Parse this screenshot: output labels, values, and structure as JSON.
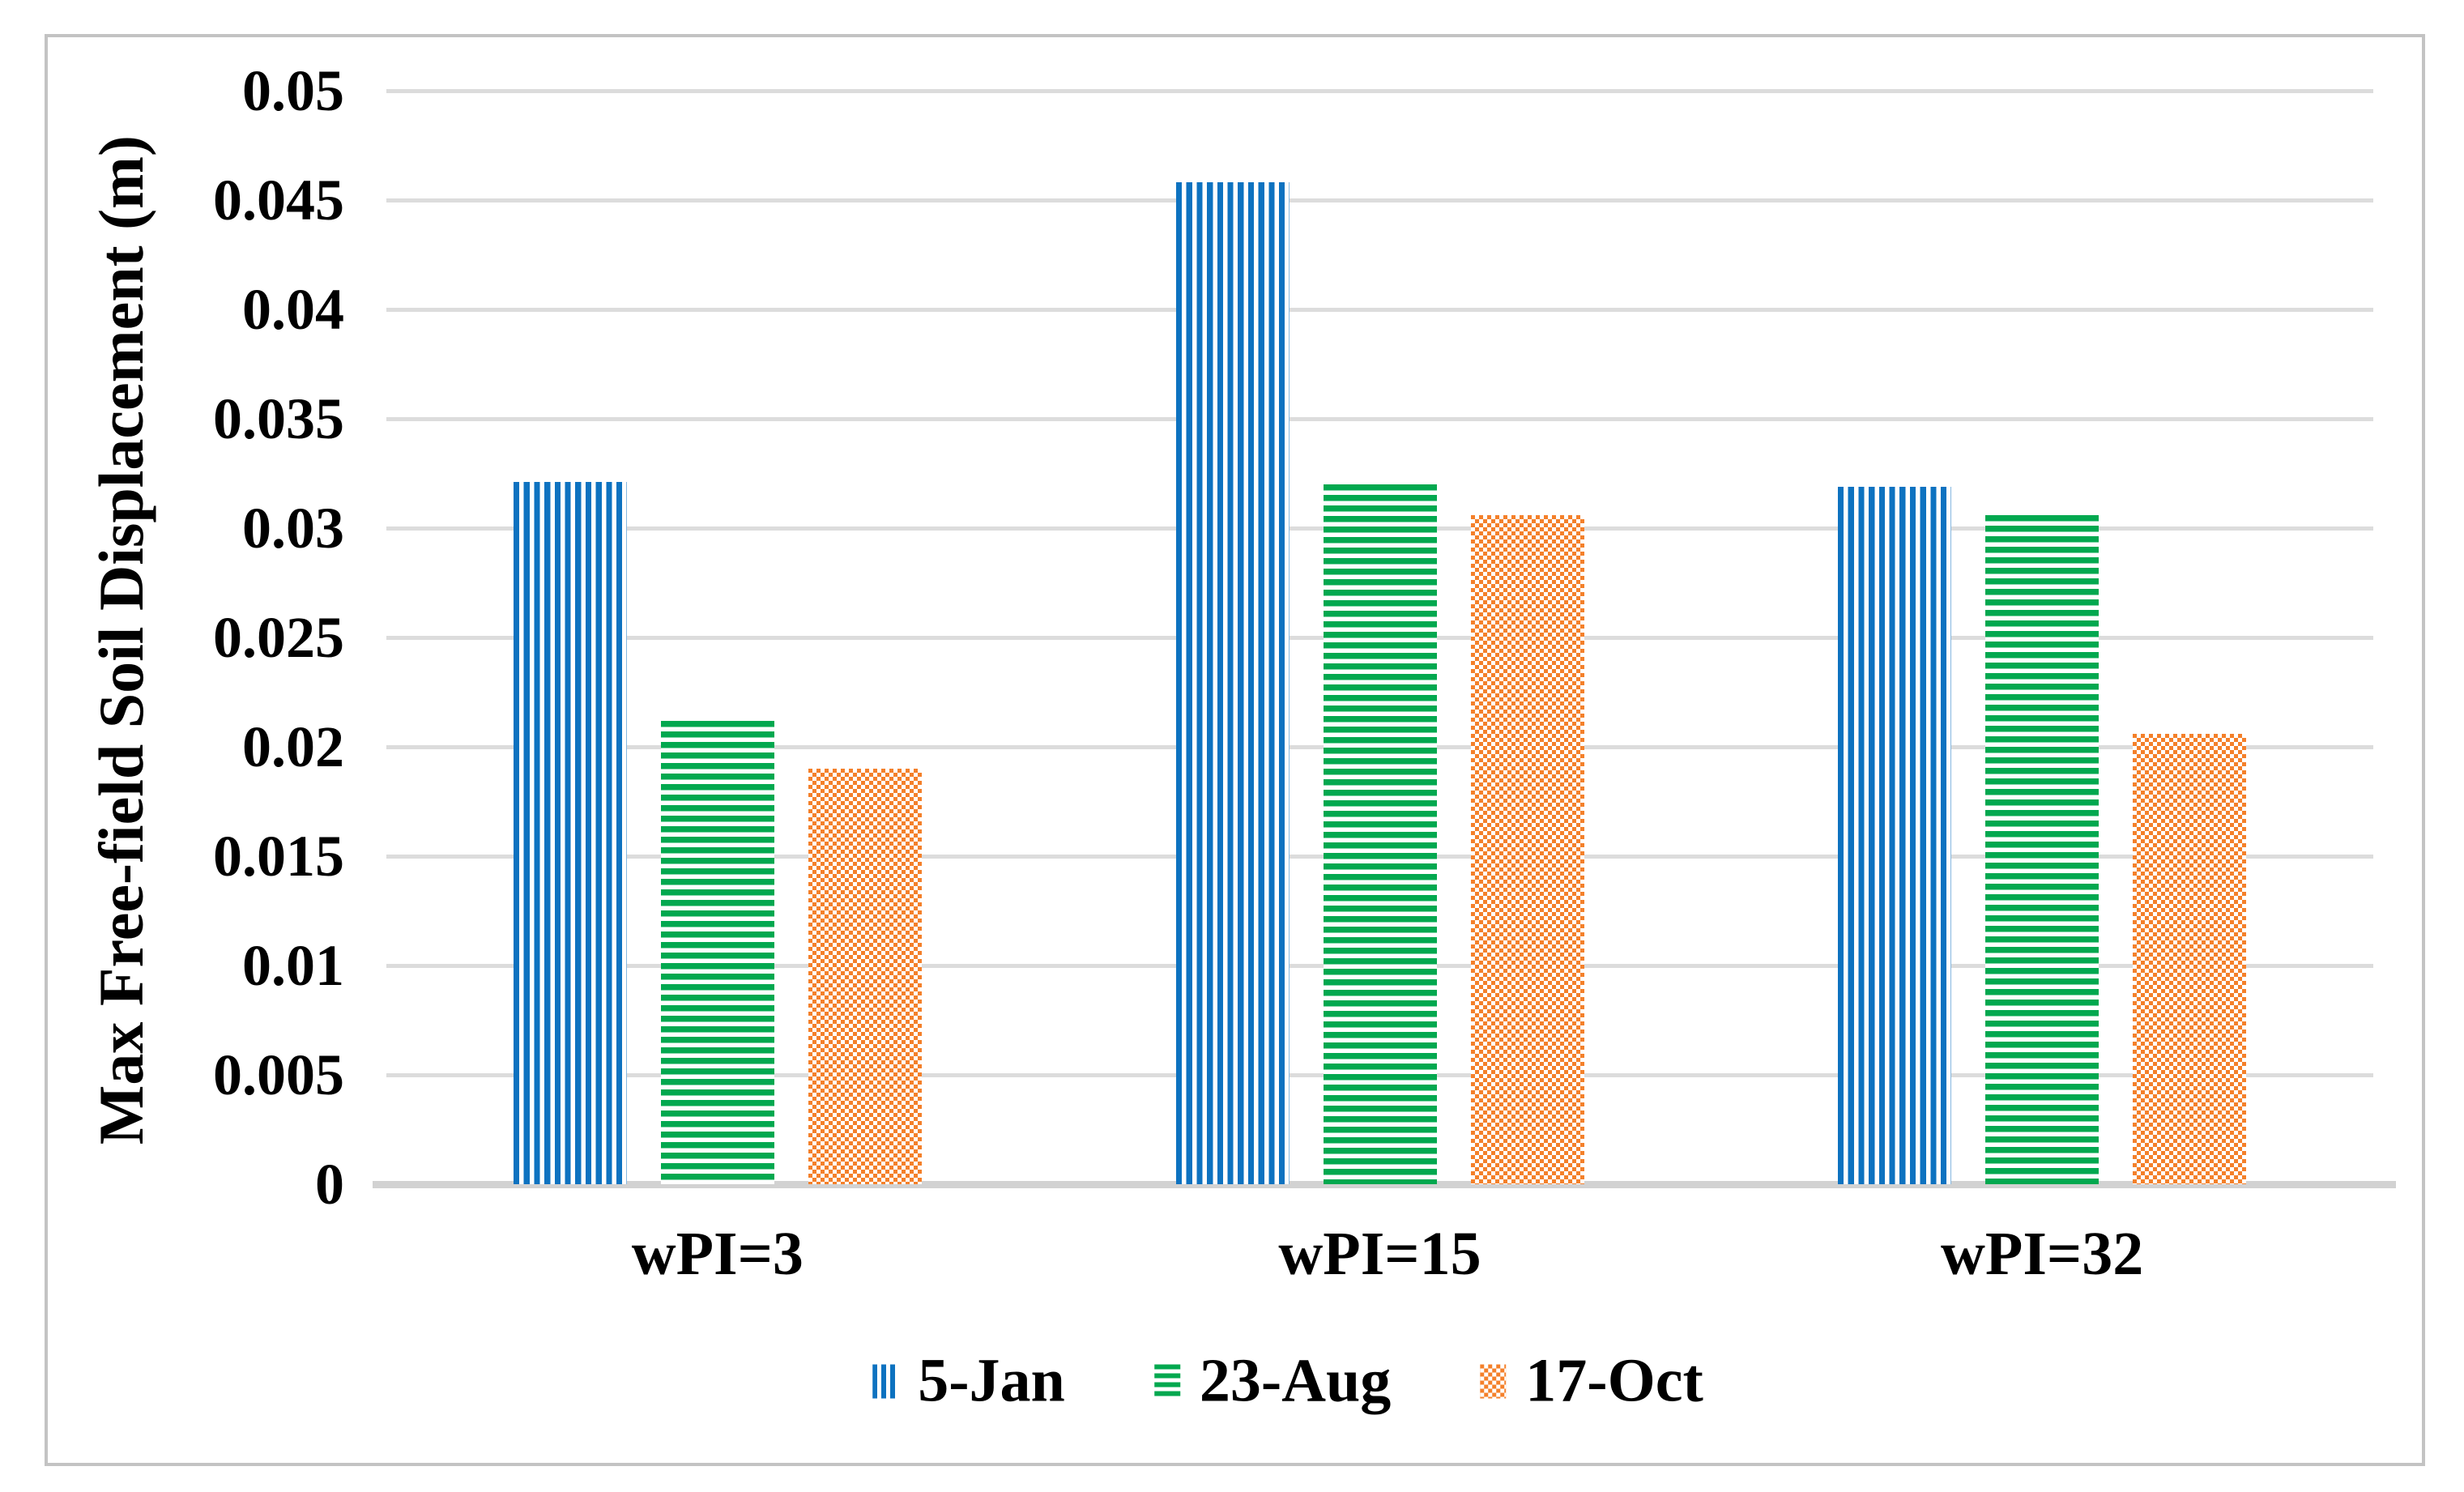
{
  "chart_data": {
    "type": "bar",
    "title": "",
    "ylabel": "Max Free-field Soil Displacement (m)",
    "xlabel": "",
    "categories": [
      "wPI=3",
      "wPI=15",
      "wPI=32"
    ],
    "series": [
      {
        "name": "5-Jan",
        "color": "#0D72C0",
        "pattern": "vertical-stripes",
        "values": [
          0.0321,
          0.0458,
          0.0319
        ]
      },
      {
        "name": "23-Aug",
        "color": "#02A84F",
        "pattern": "horizontal-stripes",
        "values": [
          0.0212,
          0.032,
          0.0306
        ]
      },
      {
        "name": "17-Oct",
        "color": "#F4802A",
        "pattern": "dotted-grid",
        "values": [
          0.019,
          0.0306,
          0.0206
        ]
      }
    ],
    "ylim": [
      0,
      0.05
    ],
    "ytick_step": 0.005,
    "ytick_labels": [
      "0",
      "0.005",
      "0.01",
      "0.015",
      "0.02",
      "0.025",
      "0.03",
      "0.035",
      "0.04",
      "0.045",
      "0.05"
    ],
    "grid": "horizontal",
    "legend_position": "bottom",
    "gridline_color": "#DCDCDC",
    "axis_line_color": "#D2D2D2",
    "border_color": "#C3C3C3",
    "text_color": "#000000"
  }
}
